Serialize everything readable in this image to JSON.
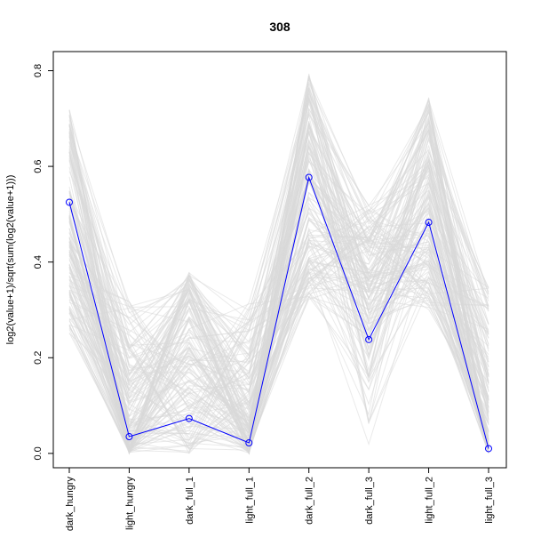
{
  "chart_data": {
    "type": "line",
    "title": "308",
    "xlabel": "",
    "ylabel": "log2(value+1)/sqrt(sum(log2(value+1)))",
    "categories": [
      "dark_hungry",
      "light_hungry",
      "dark_full_1",
      "light_full_1",
      "dark_full_2",
      "dark_full_3",
      "light_full_2",
      "light_full_3"
    ],
    "yticks": [
      "0.0",
      "0.2",
      "0.4",
      "0.6",
      "0.8"
    ],
    "ylim": [
      -0.03,
      0.84
    ],
    "grid": false,
    "legend": "none",
    "highlight": {
      "values": [
        0.525,
        0.035,
        0.073,
        0.022,
        0.577,
        0.238,
        0.483,
        0.01
      ],
      "color": "#0000ff",
      "marker": "open-circle"
    },
    "background": {
      "color": "#d9d9d9",
      "count": 160,
      "description_ranges": [
        [
          0.25,
          0.72
        ],
        [
          0.0,
          0.32
        ],
        [
          0.0,
          0.38
        ],
        [
          0.0,
          0.32
        ],
        [
          0.32,
          0.8
        ],
        [
          0.0,
          0.52
        ],
        [
          0.3,
          0.75
        ],
        [
          0.0,
          0.35
        ]
      ]
    }
  }
}
